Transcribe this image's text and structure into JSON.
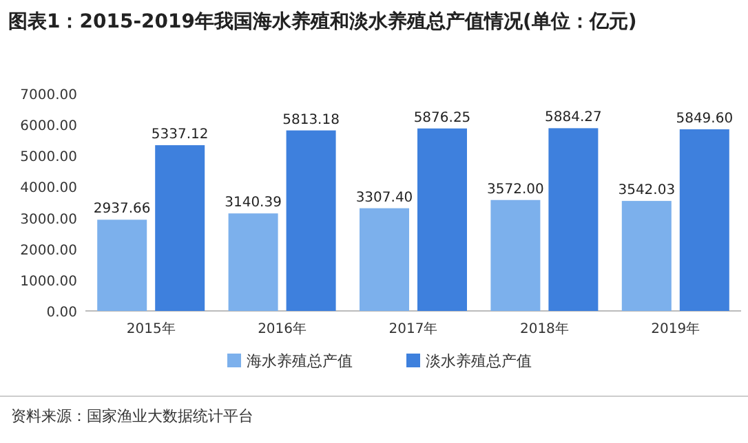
{
  "chart_data": {
    "type": "bar",
    "title": "图表1：2015-2019年我国海水养殖和淡水养殖总产值情况(单位：亿元)",
    "categories": [
      "2015年",
      "2016年",
      "2017年",
      "2018年",
      "2019年"
    ],
    "series": [
      {
        "name": "海水养殖总产值",
        "color": "#7cb0ec",
        "values": [
          2937.66,
          3140.39,
          3307.4,
          3572.0,
          3542.03
        ],
        "value_labels": [
          "2937.66",
          "3140.39",
          "3307.40",
          "3572.00",
          "3542.03"
        ]
      },
      {
        "name": "淡水养殖总产值",
        "color": "#3e80dd",
        "values": [
          5337.12,
          5813.18,
          5876.25,
          5884.27,
          5849.6
        ],
        "value_labels": [
          "5337.12",
          "5813.18",
          "5876.25",
          "5884.27",
          "5849.60"
        ]
      }
    ],
    "ylim": [
      0,
      7000
    ],
    "yticks": [
      {
        "value": 0,
        "label": "0.00"
      },
      {
        "value": 1000,
        "label": "1000.00"
      },
      {
        "value": 2000,
        "label": "2000.00"
      },
      {
        "value": 3000,
        "label": "3000.00"
      },
      {
        "value": 4000,
        "label": "4000.00"
      },
      {
        "value": 5000,
        "label": "5000.00"
      },
      {
        "value": 6000,
        "label": "6000.00"
      },
      {
        "value": 7000,
        "label": "7000.00"
      }
    ],
    "grid": false,
    "legend": "bottom",
    "annotations": [
      "资料来源：国家渔业大数据统计平台"
    ]
  }
}
